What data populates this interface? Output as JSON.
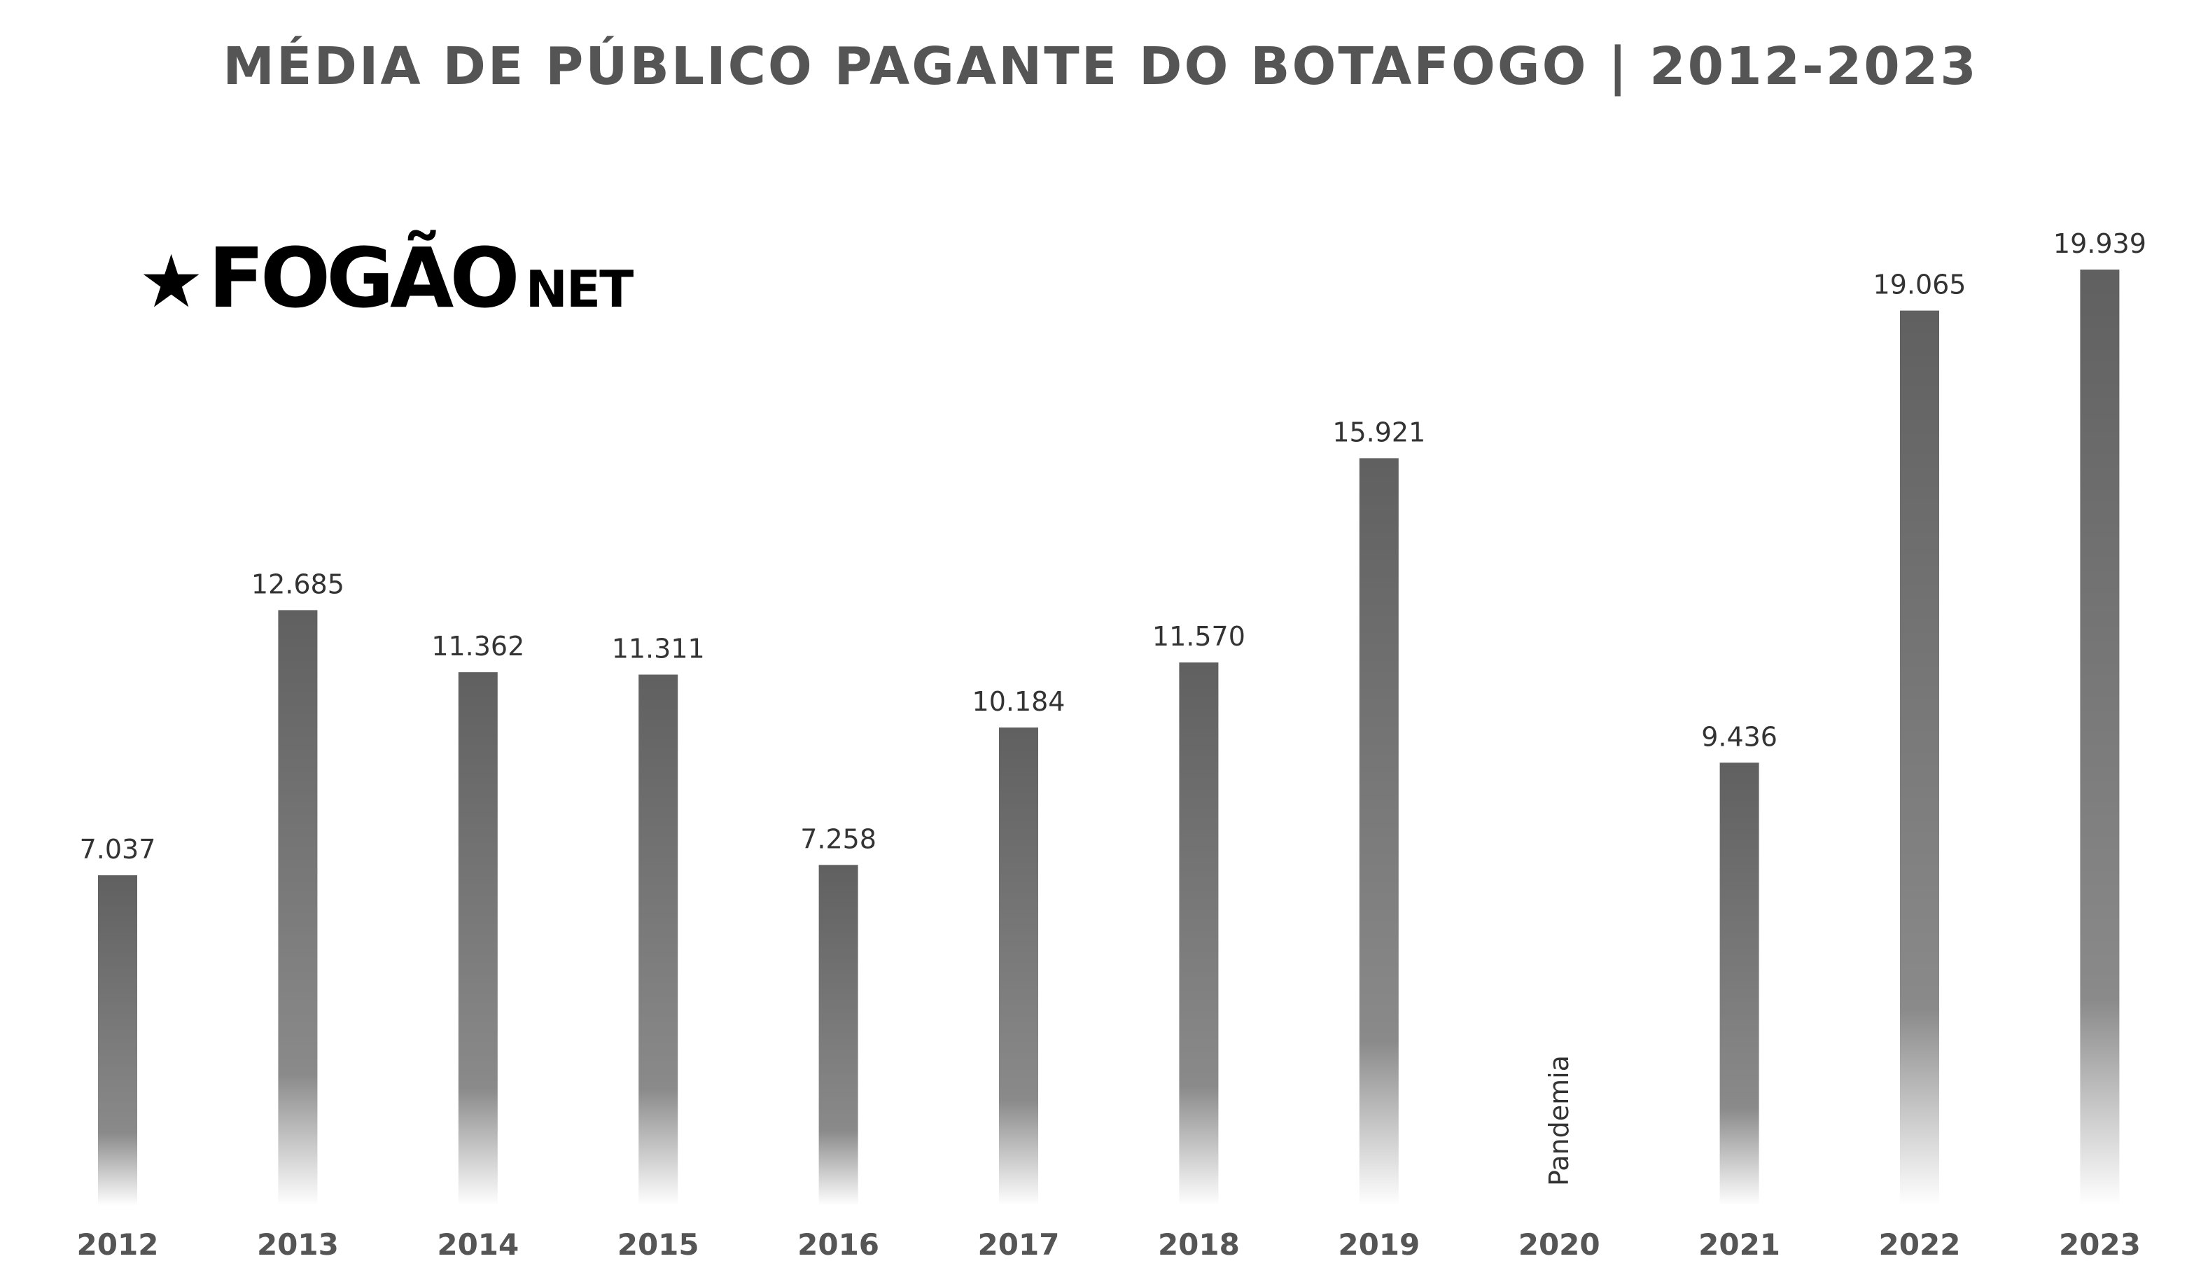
{
  "logo": {
    "star": "★",
    "main": "FOGÃO",
    "sub": "NET"
  },
  "colors": {
    "bar_top": "#606060",
    "bar_mid": "#8a8a8a",
    "bar_bottom": "#ffffff",
    "title": "#555555",
    "labels": "#333333"
  },
  "chart_data": {
    "type": "bar",
    "title": "MÉDIA DE PÚBLICO PAGANTE DO BOTAFOGO | 2012-2023",
    "xlabel": "",
    "ylabel": "",
    "grid": false,
    "ylim": [
      0,
      22000
    ],
    "categories": [
      "2012",
      "2013",
      "2014",
      "2015",
      "2016",
      "2017",
      "2018",
      "2019",
      "2020",
      "2021",
      "2022",
      "2023"
    ],
    "values": [
      7037,
      12685,
      11362,
      11311,
      7258,
      10184,
      11570,
      15921,
      null,
      9436,
      19065,
      19939
    ],
    "value_labels": [
      "7.037",
      "12.685",
      "11.362",
      "11.311",
      "7.258",
      "10.184",
      "11.570",
      "15.921",
      "",
      "9.436",
      "19.065",
      "19.939"
    ],
    "annotations": [
      {
        "category": "2020",
        "text": "Pandemia"
      }
    ]
  }
}
